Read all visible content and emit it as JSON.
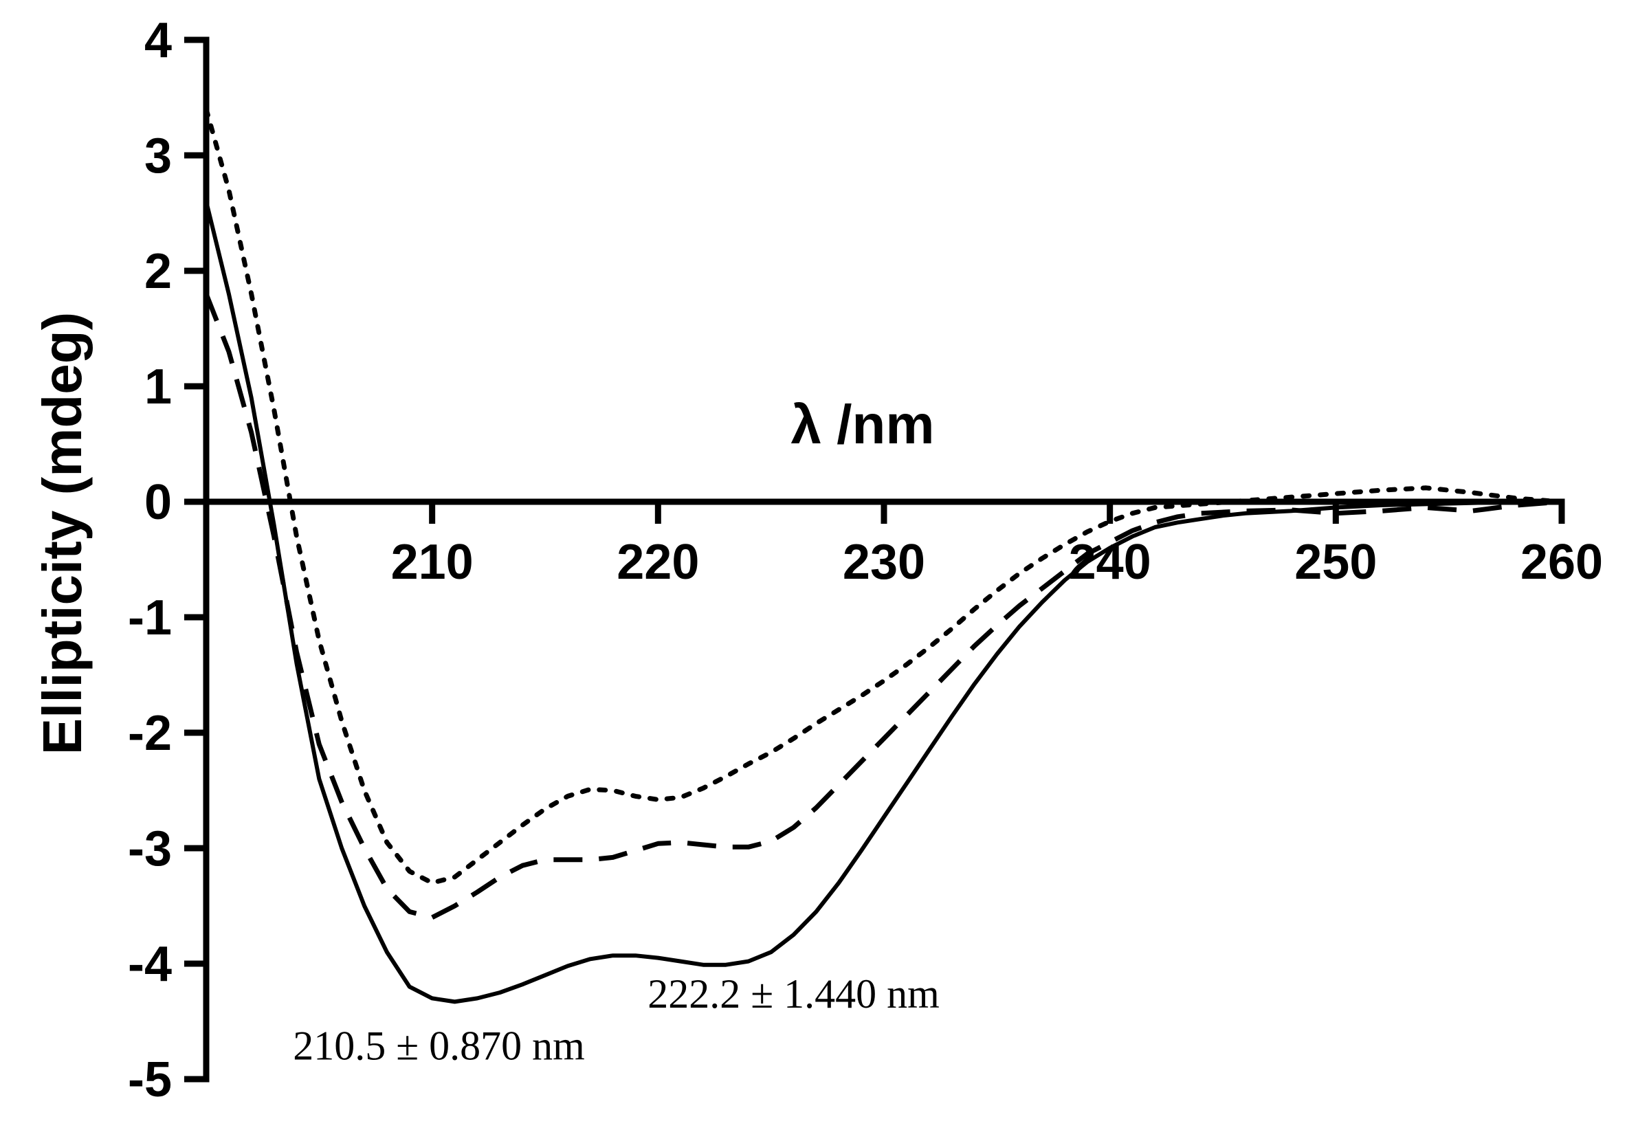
{
  "chart_data": {
    "type": "line",
    "xlabel": "λ /nm",
    "ylabel": "Ellipticity (mdeg)",
    "xlim": [
      200,
      260
    ],
    "ylim": [
      -5,
      4
    ],
    "x_ticks": [
      210,
      220,
      230,
      240,
      250,
      260
    ],
    "y_ticks": [
      4,
      3,
      2,
      1,
      0,
      -1,
      -2,
      -3,
      -4,
      -5
    ],
    "grid": false,
    "legend": "none",
    "series": [
      {
        "style": "solid",
        "color": "#000000",
        "points": [
          [
            200,
            2.6
          ],
          [
            201,
            1.8
          ],
          [
            202,
            0.9
          ],
          [
            203,
            -0.2
          ],
          [
            204,
            -1.4
          ],
          [
            205,
            -2.4
          ],
          [
            206,
            -3.0
          ],
          [
            207,
            -3.5
          ],
          [
            208,
            -3.9
          ],
          [
            209,
            -4.2
          ],
          [
            210,
            -4.3
          ],
          [
            211,
            -4.33
          ],
          [
            212,
            -4.3
          ],
          [
            213,
            -4.25
          ],
          [
            214,
            -4.18
          ],
          [
            215,
            -4.1
          ],
          [
            216,
            -4.02
          ],
          [
            217,
            -3.96
          ],
          [
            218,
            -3.93
          ],
          [
            219,
            -3.93
          ],
          [
            220,
            -3.95
          ],
          [
            221,
            -3.98
          ],
          [
            222,
            -4.01
          ],
          [
            223,
            -4.01
          ],
          [
            224,
            -3.98
          ],
          [
            225,
            -3.9
          ],
          [
            226,
            -3.75
          ],
          [
            227,
            -3.55
          ],
          [
            228,
            -3.3
          ],
          [
            229,
            -3.02
          ],
          [
            230,
            -2.73
          ],
          [
            231,
            -2.44
          ],
          [
            232,
            -2.15
          ],
          [
            233,
            -1.86
          ],
          [
            234,
            -1.58
          ],
          [
            235,
            -1.32
          ],
          [
            236,
            -1.08
          ],
          [
            237,
            -0.87
          ],
          [
            238,
            -0.68
          ],
          [
            239,
            -0.52
          ],
          [
            240,
            -0.4
          ],
          [
            241,
            -0.3
          ],
          [
            242,
            -0.22
          ],
          [
            243,
            -0.18
          ],
          [
            244,
            -0.15
          ],
          [
            245,
            -0.12
          ],
          [
            246,
            -0.1
          ],
          [
            248,
            -0.08
          ],
          [
            250,
            -0.05
          ],
          [
            252,
            -0.03
          ],
          [
            254,
            -0.02
          ],
          [
            256,
            -0.01
          ],
          [
            258,
            0.0
          ],
          [
            260,
            0.0
          ]
        ]
      },
      {
        "style": "dashed",
        "color": "#000000",
        "points": [
          [
            200,
            1.8
          ],
          [
            201,
            1.3
          ],
          [
            202,
            0.6
          ],
          [
            203,
            -0.3
          ],
          [
            204,
            -1.3
          ],
          [
            205,
            -2.1
          ],
          [
            206,
            -2.6
          ],
          [
            207,
            -3.0
          ],
          [
            208,
            -3.35
          ],
          [
            209,
            -3.55
          ],
          [
            210,
            -3.6
          ],
          [
            211,
            -3.5
          ],
          [
            212,
            -3.38
          ],
          [
            213,
            -3.25
          ],
          [
            214,
            -3.15
          ],
          [
            215,
            -3.1
          ],
          [
            216,
            -3.1
          ],
          [
            217,
            -3.1
          ],
          [
            218,
            -3.08
          ],
          [
            219,
            -3.02
          ],
          [
            220,
            -2.96
          ],
          [
            221,
            -2.95
          ],
          [
            222,
            -2.97
          ],
          [
            223,
            -2.99
          ],
          [
            224,
            -2.99
          ],
          [
            225,
            -2.94
          ],
          [
            226,
            -2.82
          ],
          [
            227,
            -2.65
          ],
          [
            228,
            -2.45
          ],
          [
            229,
            -2.25
          ],
          [
            230,
            -2.05
          ],
          [
            231,
            -1.85
          ],
          [
            232,
            -1.65
          ],
          [
            233,
            -1.45
          ],
          [
            234,
            -1.25
          ],
          [
            235,
            -1.07
          ],
          [
            236,
            -0.9
          ],
          [
            237,
            -0.75
          ],
          [
            238,
            -0.6
          ],
          [
            239,
            -0.45
          ],
          [
            240,
            -0.35
          ],
          [
            241,
            -0.25
          ],
          [
            242,
            -0.18
          ],
          [
            243,
            -0.13
          ],
          [
            244,
            -0.1
          ],
          [
            246,
            -0.08
          ],
          [
            248,
            -0.07
          ],
          [
            250,
            -0.1
          ],
          [
            252,
            -0.08
          ],
          [
            254,
            -0.05
          ],
          [
            256,
            -0.08
          ],
          [
            258,
            -0.03
          ],
          [
            260,
            0.0
          ]
        ]
      },
      {
        "style": "dotted",
        "color": "#000000",
        "points": [
          [
            200,
            3.4
          ],
          [
            201,
            2.7
          ],
          [
            202,
            1.8
          ],
          [
            203,
            0.8
          ],
          [
            204,
            -0.3
          ],
          [
            205,
            -1.2
          ],
          [
            206,
            -1.9
          ],
          [
            207,
            -2.5
          ],
          [
            208,
            -2.95
          ],
          [
            209,
            -3.2
          ],
          [
            210,
            -3.3
          ],
          [
            211,
            -3.25
          ],
          [
            212,
            -3.1
          ],
          [
            213,
            -2.95
          ],
          [
            214,
            -2.8
          ],
          [
            215,
            -2.66
          ],
          [
            216,
            -2.55
          ],
          [
            217,
            -2.49
          ],
          [
            218,
            -2.5
          ],
          [
            219,
            -2.55
          ],
          [
            220,
            -2.58
          ],
          [
            221,
            -2.56
          ],
          [
            222,
            -2.48
          ],
          [
            223,
            -2.38
          ],
          [
            224,
            -2.27
          ],
          [
            225,
            -2.17
          ],
          [
            226,
            -2.05
          ],
          [
            227,
            -1.92
          ],
          [
            228,
            -1.8
          ],
          [
            229,
            -1.68
          ],
          [
            230,
            -1.55
          ],
          [
            231,
            -1.41
          ],
          [
            232,
            -1.26
          ],
          [
            233,
            -1.1
          ],
          [
            234,
            -0.93
          ],
          [
            235,
            -0.77
          ],
          [
            236,
            -0.62
          ],
          [
            237,
            -0.49
          ],
          [
            238,
            -0.37
          ],
          [
            239,
            -0.26
          ],
          [
            240,
            -0.17
          ],
          [
            241,
            -0.1
          ],
          [
            242,
            -0.05
          ],
          [
            244,
            -0.02
          ],
          [
            246,
            0.01
          ],
          [
            248,
            0.04
          ],
          [
            250,
            0.07
          ],
          [
            252,
            0.1
          ],
          [
            254,
            0.12
          ],
          [
            256,
            0.08
          ],
          [
            258,
            0.03
          ],
          [
            260,
            0.0
          ]
        ]
      }
    ],
    "annotations": [
      {
        "text": "222.2 ± 1.440 nm",
        "x": 226,
        "y": -4.38
      },
      {
        "text": "210.5 ± 0.870 nm",
        "x": 210.3,
        "y": -4.83
      }
    ]
  }
}
